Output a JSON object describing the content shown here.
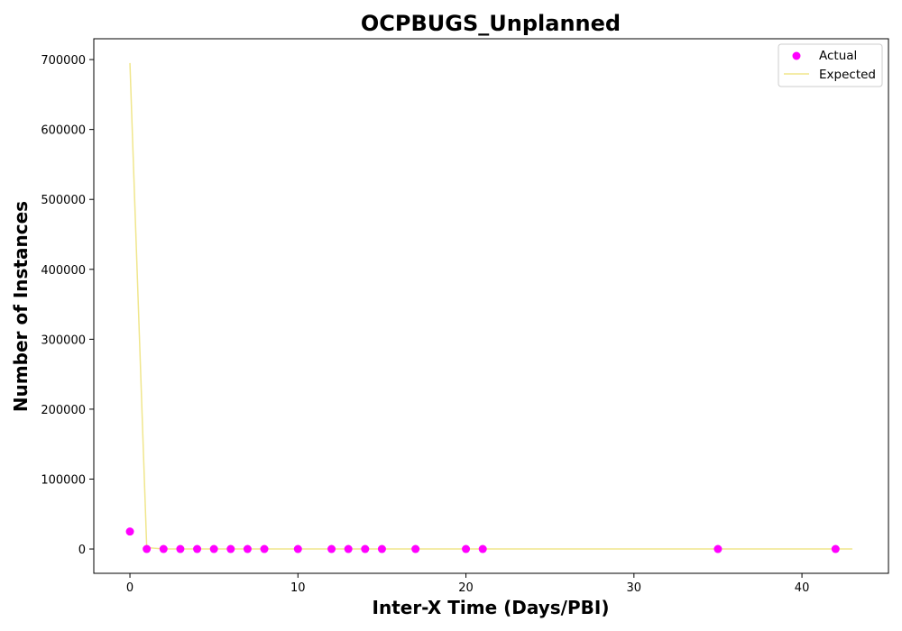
{
  "chart_data": {
    "type": "scatter",
    "title": "OCPBUGS_Unplanned",
    "xlabel": "Inter-X Time (Days/PBI)",
    "ylabel": "Number of Instances",
    "xlim": [
      -2.15,
      45.15
    ],
    "ylim": [
      -34750,
      729750
    ],
    "xticks": [
      0,
      10,
      20,
      30,
      40
    ],
    "yticks": [
      0,
      100000,
      200000,
      300000,
      400000,
      500000,
      600000,
      700000
    ],
    "grid": false,
    "legend_position": "top-right",
    "series": [
      {
        "name": "Actual",
        "kind": "scatter",
        "color": "#ff00ff",
        "x": [
          0,
          1,
          2,
          3,
          4,
          5,
          6,
          7,
          8,
          10,
          12,
          13,
          14,
          15,
          17,
          20,
          21,
          35,
          42
        ],
        "y": [
          25000,
          0,
          0,
          0,
          0,
          0,
          0,
          0,
          0,
          0,
          0,
          0,
          0,
          0,
          0,
          0,
          0,
          0,
          0
        ]
      },
      {
        "name": "Expected",
        "kind": "line",
        "color": "#f0e68c",
        "x": [
          0,
          1,
          2,
          3,
          5,
          10,
          20,
          30,
          40,
          43
        ],
        "y": [
          695000,
          2000,
          0,
          0,
          0,
          0,
          0,
          0,
          0,
          0
        ]
      }
    ]
  }
}
